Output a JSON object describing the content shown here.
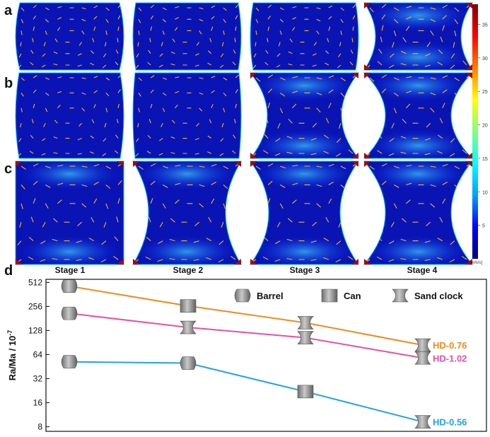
{
  "panels": {
    "a": "a",
    "b": "b",
    "c": "c",
    "d": "d"
  },
  "stages": [
    "Stage 1",
    "Stage 2",
    "Stage 3",
    "Stage 4"
  ],
  "colorbar": {
    "ticks": [
      "35",
      "30",
      "25",
      "20",
      "15",
      "10",
      "5"
    ],
    "unit": "[mm/s]",
    "colors": [
      "#00007f",
      "#0000ff",
      "#00a0ff",
      "#00ffff",
      "#80ff80",
      "#ffff00",
      "#ff8000",
      "#ff0000",
      "#7f0000"
    ]
  },
  "legend": {
    "barrel": "Barrel",
    "can": "Can",
    "sand_clock": "Sand clock"
  },
  "chart_data": {
    "type": "line",
    "ylabel": "Ra/Ma / 10",
    "ylabel_exp": "-7",
    "yscale": "log2",
    "ylim": [
      7,
      560
    ],
    "yticks": [
      "512",
      "256",
      "128",
      "64",
      "32",
      "16",
      "8"
    ],
    "ytick_values": [
      512,
      256,
      128,
      64,
      32,
      16,
      8
    ],
    "categories": [
      "Stage 1",
      "Stage 2",
      "Stage 3",
      "Stage 4"
    ],
    "series": [
      {
        "name": "HD-0.76",
        "color": "#f08a1e",
        "values": [
          460,
          260,
          160,
          84
        ],
        "shapes": [
          "barrel",
          "can",
          "sandclock",
          "sandclock"
        ]
      },
      {
        "name": "HD-1.02",
        "color": "#e84fa6",
        "values": [
          210,
          140,
          104,
          58
        ],
        "shapes": [
          "barrel",
          "sandclock",
          "sandclock",
          "sandclock"
        ]
      },
      {
        "name": "HD-0.56",
        "color": "#1fa3e8",
        "values": [
          52,
          50,
          22,
          9.2
        ],
        "shapes": [
          "barrel",
          "barrel",
          "can",
          "sandclock"
        ]
      }
    ]
  }
}
